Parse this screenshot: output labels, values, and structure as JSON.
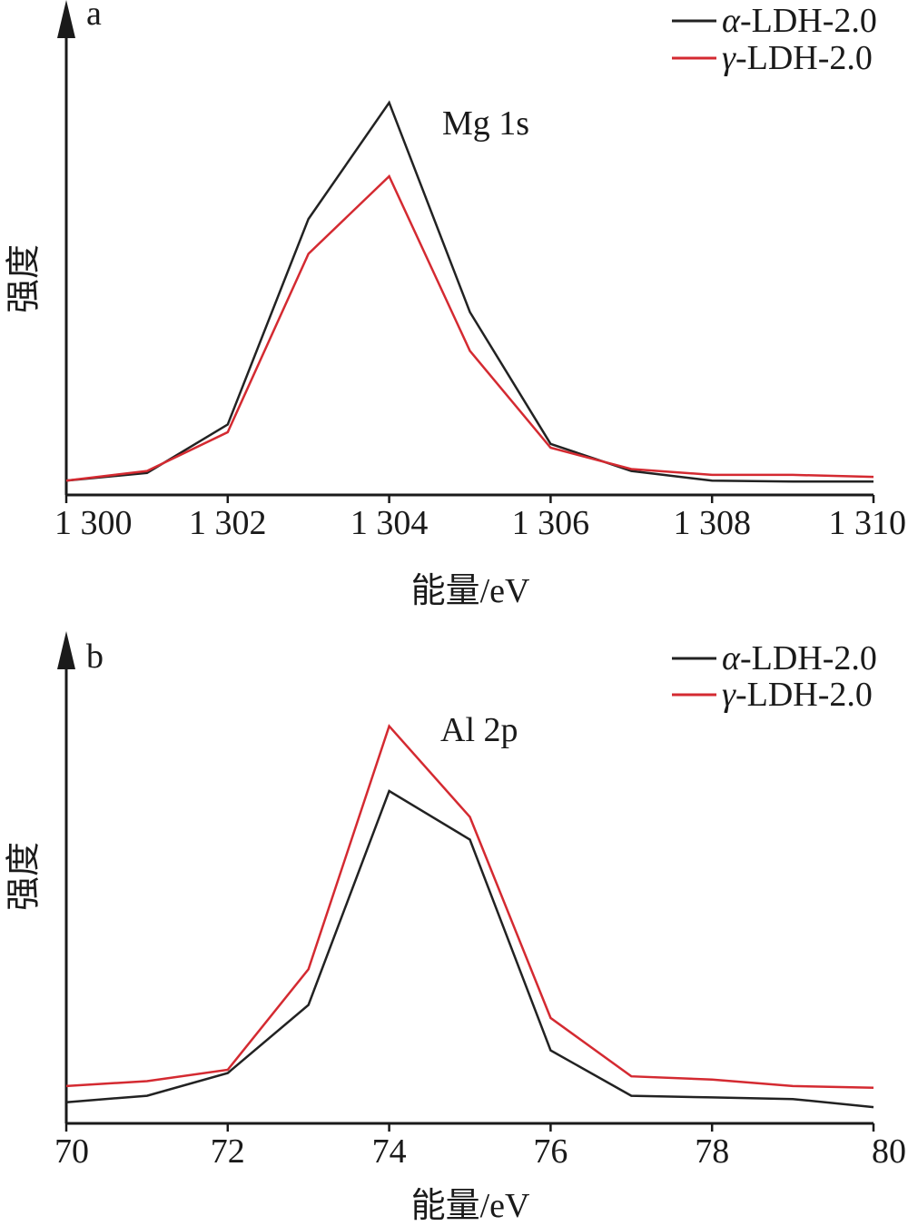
{
  "chart_data": [
    {
      "type": "line",
      "panel": "a",
      "annotation": "Mg 1s",
      "xlabel": "能量/eV",
      "ylabel": "强度",
      "xlim": [
        1300,
        1310
      ],
      "ylim": [
        0,
        100
      ],
      "x_ticks": [
        1300,
        1302,
        1304,
        1306,
        1308,
        1310
      ],
      "x_tick_labels": [
        "1 300",
        "1 302",
        "1 304",
        "1 306",
        "1 308",
        "1 310"
      ],
      "legend_position": "top-right",
      "series": [
        {
          "name": "α-LDH-2.0",
          "legend_prefix": "α",
          "legend_suffix": "-LDH-2.0",
          "color": "#222222",
          "x": [
            1300,
            1301,
            1302,
            1303,
            1304,
            1305,
            1306,
            1307,
            1308,
            1309,
            1310
          ],
          "y": [
            2.5,
            4.5,
            17,
            70,
            100,
            46,
            12,
            5,
            2.5,
            2.3,
            2.3
          ]
        },
        {
          "name": "γ-LDH-2.0",
          "legend_prefix": "γ",
          "legend_suffix": "-LDH-2.0",
          "color": "#d42a31",
          "x": [
            1300,
            1301,
            1302,
            1303,
            1304,
            1305,
            1306,
            1307,
            1308,
            1309,
            1310
          ],
          "y": [
            2.5,
            5,
            15,
            61,
            81,
            36,
            11,
            5.5,
            4,
            4,
            3.5
          ]
        }
      ]
    },
    {
      "type": "line",
      "panel": "b",
      "annotation": "Al 2p",
      "xlabel": "能量/eV",
      "ylabel": "强度",
      "xlim": [
        70,
        80
      ],
      "ylim": [
        0,
        100
      ],
      "x_ticks": [
        70,
        72,
        74,
        76,
        78,
        80
      ],
      "x_tick_labels": [
        "70",
        "72",
        "74",
        "76",
        "78",
        "80"
      ],
      "legend_position": "top-right",
      "series": [
        {
          "name": "α-LDH-2.0",
          "legend_prefix": "α",
          "legend_suffix": "-LDH-2.0",
          "color": "#222222",
          "x": [
            70,
            71,
            72,
            73,
            74,
            75,
            76,
            77,
            78,
            79,
            80
          ],
          "y": [
            4,
            6,
            13,
            34,
            100,
            85,
            20,
            6,
            5.5,
            5,
            2.5
          ]
        },
        {
          "name": "γ-LDH-2.0",
          "legend_prefix": "γ",
          "legend_suffix": "-LDH-2.0",
          "color": "#d42a31",
          "x": [
            70,
            71,
            72,
            73,
            74,
            75,
            76,
            77,
            78,
            79,
            80
          ],
          "y": [
            9,
            10.5,
            14,
            45,
            120,
            92,
            30,
            12,
            11,
            9,
            8.5
          ]
        }
      ]
    }
  ]
}
